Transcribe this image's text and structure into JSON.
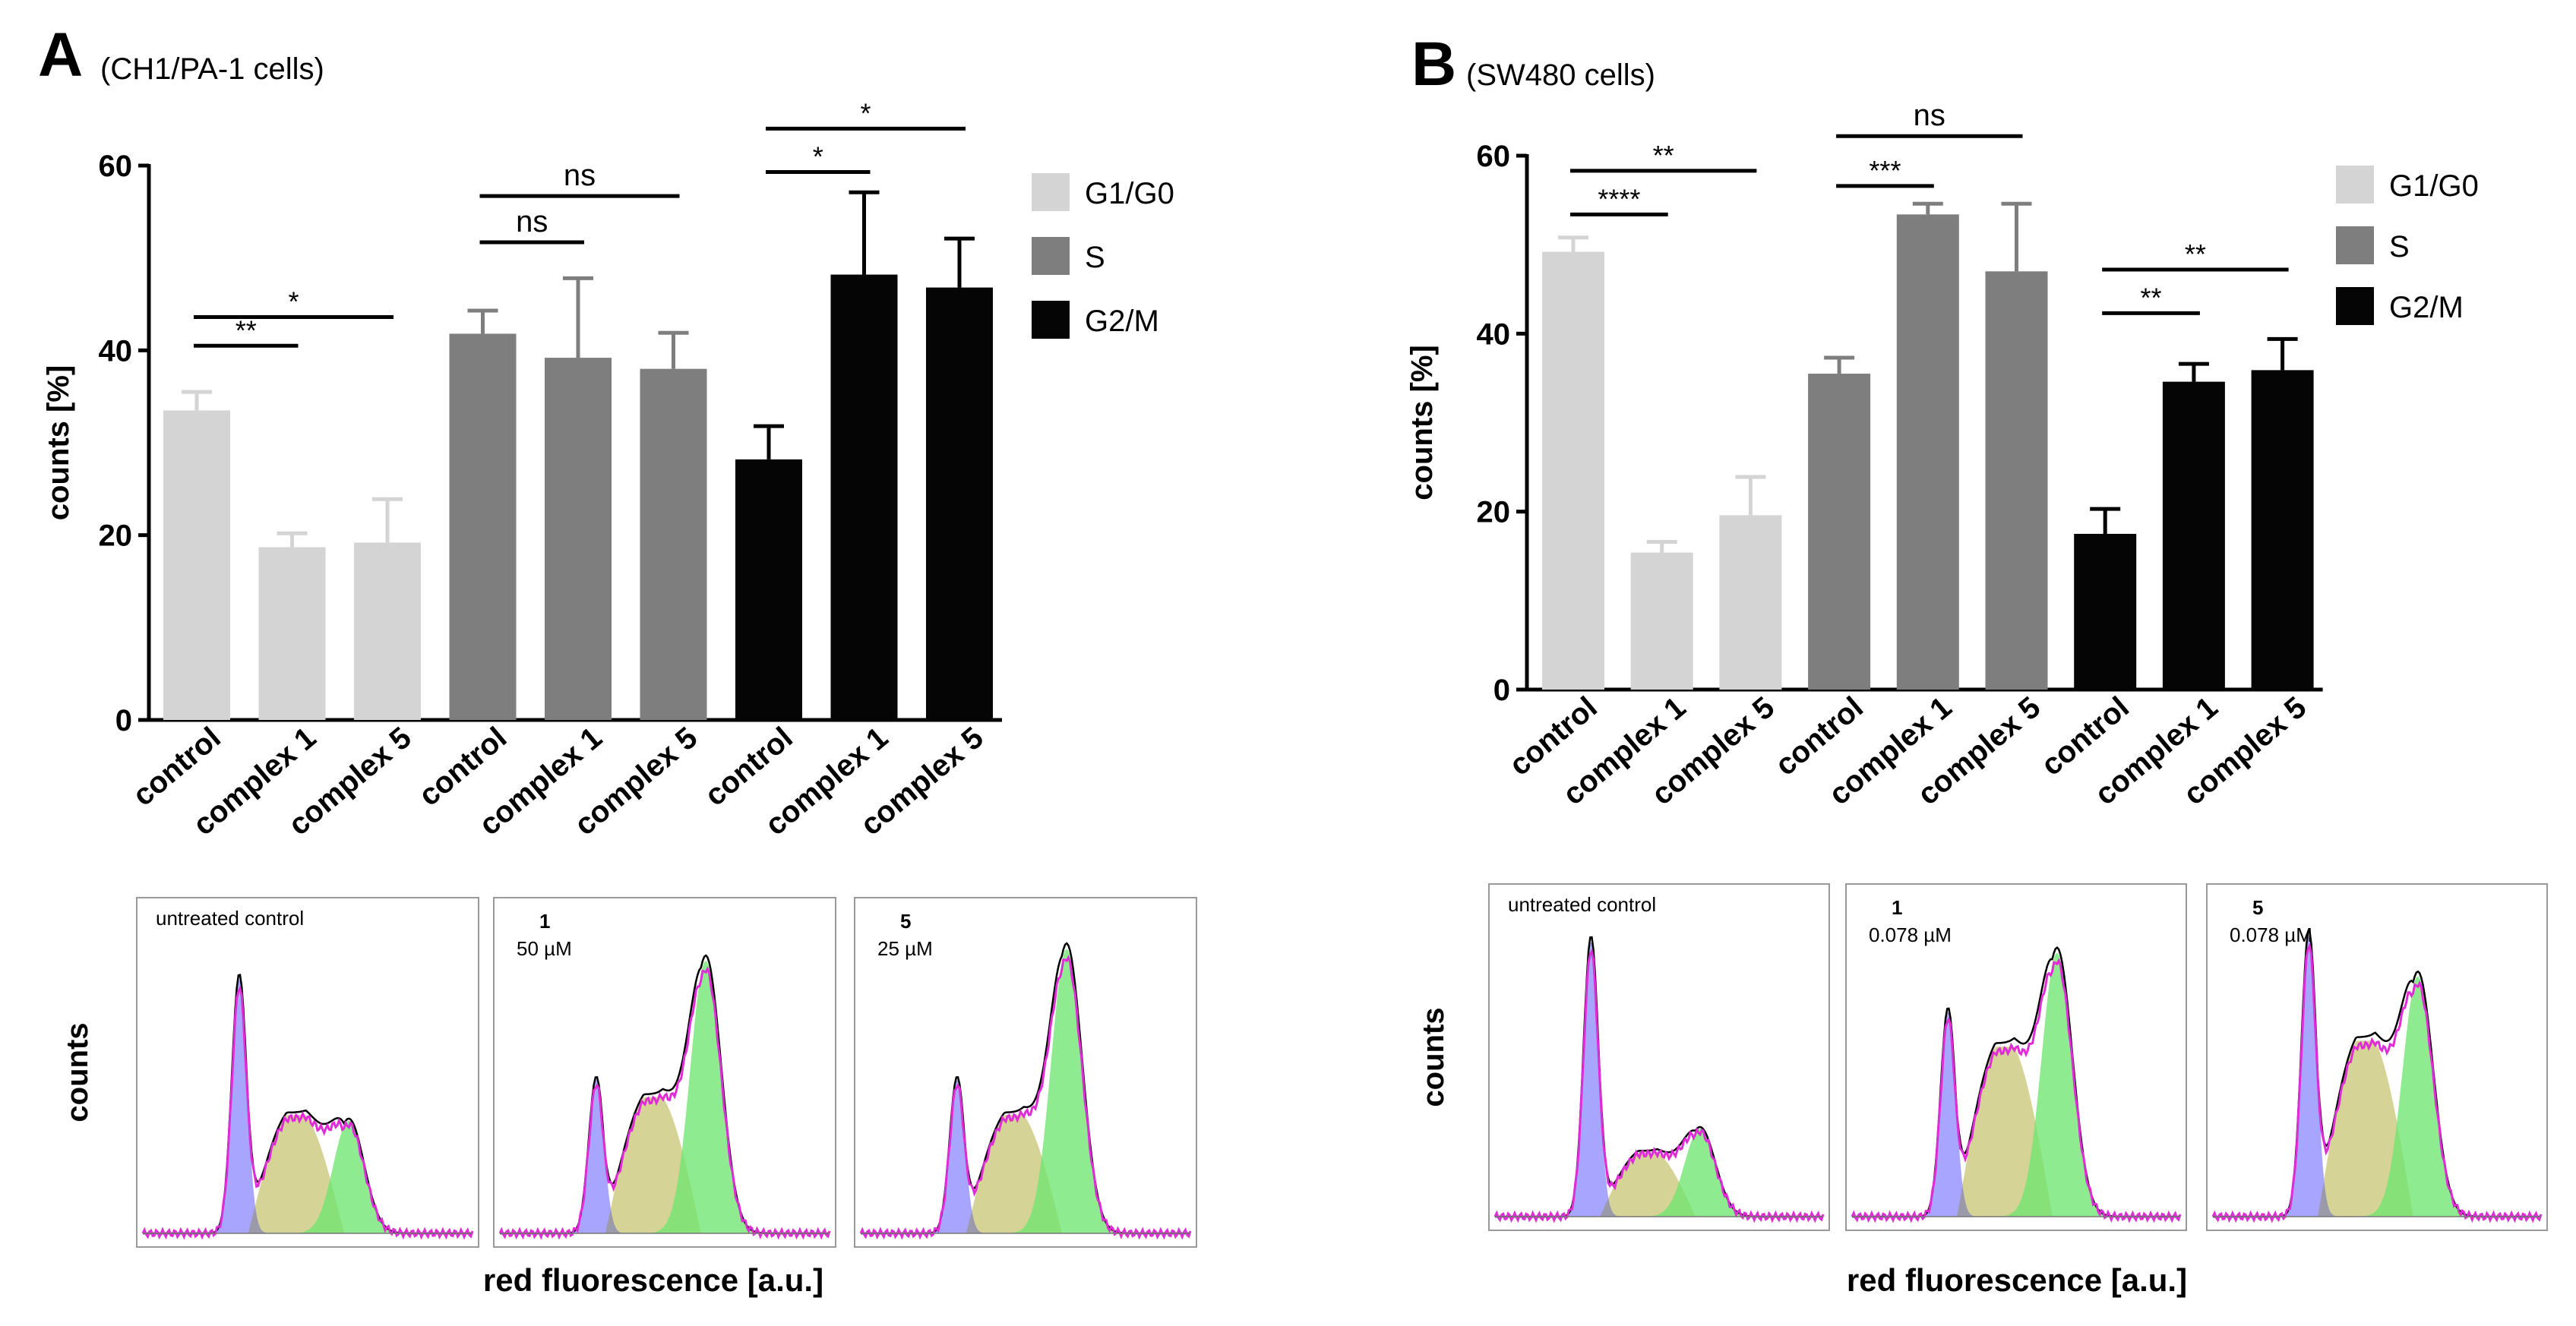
{
  "colors": {
    "g1": "#d4d4d4",
    "s": "#7e7e7e",
    "g2m": "#050505",
    "err_g1": "#d4d4d4",
    "err_s": "#7e7e7e",
    "err_g2m": "#000000",
    "hist_g1": "#8f8cff",
    "hist_s": "#cbc77a",
    "hist_g2m": "#6fe66f",
    "hist_overlap": "#9a9a9a",
    "hist_fit": "#e02cd6",
    "hist_data": "#000000"
  },
  "chart_data": [
    {
      "type": "bar",
      "panel_label": "A",
      "title": "(CH1/PA-1 cells)",
      "ylabel": "counts [%]",
      "ylim": [
        0,
        60
      ],
      "yticks": [
        "0",
        "20",
        "40",
        "60"
      ],
      "categories": [
        "control",
        "complex 1",
        "complex 5",
        "control",
        "complex 1",
        "complex 5",
        "control",
        "complex 1",
        "complex 5"
      ],
      "bars": [
        {
          "group": "G1/G0",
          "value": 33.5,
          "error": 2.0
        },
        {
          "group": "G1/G0",
          "value": 18.7,
          "error": 1.5
        },
        {
          "group": "G1/G0",
          "value": 19.2,
          "error": 4.7
        },
        {
          "group": "S",
          "value": 41.8,
          "error": 2.5
        },
        {
          "group": "S",
          "value": 39.2,
          "error": 8.6
        },
        {
          "group": "S",
          "value": 38.0,
          "error": 3.9
        },
        {
          "group": "G2/M",
          "value": 28.2,
          "error": 3.6
        },
        {
          "group": "G2/M",
          "value": 48.2,
          "error": 8.9
        },
        {
          "group": "G2/M",
          "value": 46.8,
          "error": 5.3
        }
      ],
      "legend": [
        {
          "name": "G1/G0",
          "key": "g1"
        },
        {
          "name": "S",
          "key": "s"
        },
        {
          "name": "G2/M",
          "key": "g2m"
        }
      ],
      "significance": [
        {
          "from": 0,
          "to": 1,
          "label": "**",
          "level": 40.5
        },
        {
          "from": 0,
          "to": 2,
          "label": "*",
          "level": 43.6
        },
        {
          "from": 3,
          "to": 4,
          "label": "ns",
          "level": 51.7
        },
        {
          "from": 3,
          "to": 5,
          "label": "ns",
          "level": 56.7
        },
        {
          "from": 6,
          "to": 7,
          "label": "*",
          "level": 59.3
        },
        {
          "from": 6,
          "to": 8,
          "label": "*",
          "level": 64.0
        }
      ]
    },
    {
      "type": "bar",
      "panel_label": "B",
      "title": "(SW480 cells)",
      "ylabel": "counts [%]",
      "ylim": [
        0,
        60
      ],
      "yticks": [
        "0",
        "20",
        "40",
        "60"
      ],
      "categories": [
        "control",
        "complex 1",
        "complex 5",
        "control",
        "complex 1",
        "complex 5",
        "control",
        "complex 1",
        "complex 5"
      ],
      "bars": [
        {
          "group": "G1/G0",
          "value": 49.2,
          "error": 1.6
        },
        {
          "group": "G1/G0",
          "value": 15.4,
          "error": 1.2
        },
        {
          "group": "G1/G0",
          "value": 19.6,
          "error": 4.3
        },
        {
          "group": "S",
          "value": 35.5,
          "error": 1.8
        },
        {
          "group": "S",
          "value": 53.4,
          "error": 1.2
        },
        {
          "group": "S",
          "value": 47.0,
          "error": 7.6
        },
        {
          "group": "G2/M",
          "value": 17.5,
          "error": 2.8
        },
        {
          "group": "G2/M",
          "value": 34.6,
          "error": 2.0
        },
        {
          "group": "G2/M",
          "value": 35.9,
          "error": 3.5
        }
      ],
      "legend": [
        {
          "name": "G1/G0",
          "key": "g1"
        },
        {
          "name": "S",
          "key": "s"
        },
        {
          "name": "G2/M",
          "key": "g2m"
        }
      ],
      "significance": [
        {
          "from": 0,
          "to": 1,
          "label": "****",
          "level": 53.4
        },
        {
          "from": 0,
          "to": 2,
          "label": "**",
          "level": 58.3
        },
        {
          "from": 3,
          "to": 4,
          "label": "***",
          "level": 56.6
        },
        {
          "from": 3,
          "to": 5,
          "label": "ns",
          "level": 62.2
        },
        {
          "from": 6,
          "to": 7,
          "label": "**",
          "level": 42.3
        },
        {
          "from": 6,
          "to": 8,
          "label": "**",
          "level": 47.2
        }
      ]
    }
  ],
  "histograms": [
    {
      "ylabel": "counts",
      "xlabel": "red fluorescence [a.u.]",
      "panels": [
        {
          "label": "untreated control",
          "compound": "",
          "concentration": "",
          "g1_height": 0.86,
          "s_height": 0.4,
          "g2_height": 0.38
        },
        {
          "label": "",
          "compound": "1",
          "concentration": "50 µM",
          "g1_height": 0.52,
          "s_height": 0.46,
          "g2_height": 0.92
        },
        {
          "label": "",
          "compound": "5",
          "concentration": "25 µM",
          "g1_height": 0.52,
          "s_height": 0.4,
          "g2_height": 0.96
        }
      ]
    },
    {
      "ylabel": "counts",
      "xlabel": "red fluorescence [a.u.]",
      "panels": [
        {
          "label": "untreated control",
          "compound": "",
          "concentration": "",
          "g1_height": 0.94,
          "s_height": 0.22,
          "g2_height": 0.3
        },
        {
          "label": "",
          "compound": "1",
          "concentration": "0.078 µM",
          "g1_height": 0.7,
          "s_height": 0.58,
          "g2_height": 0.9
        },
        {
          "label": "",
          "compound": "5",
          "concentration": "0.078 µM",
          "g1_height": 0.96,
          "s_height": 0.6,
          "g2_height": 0.82
        }
      ]
    }
  ]
}
